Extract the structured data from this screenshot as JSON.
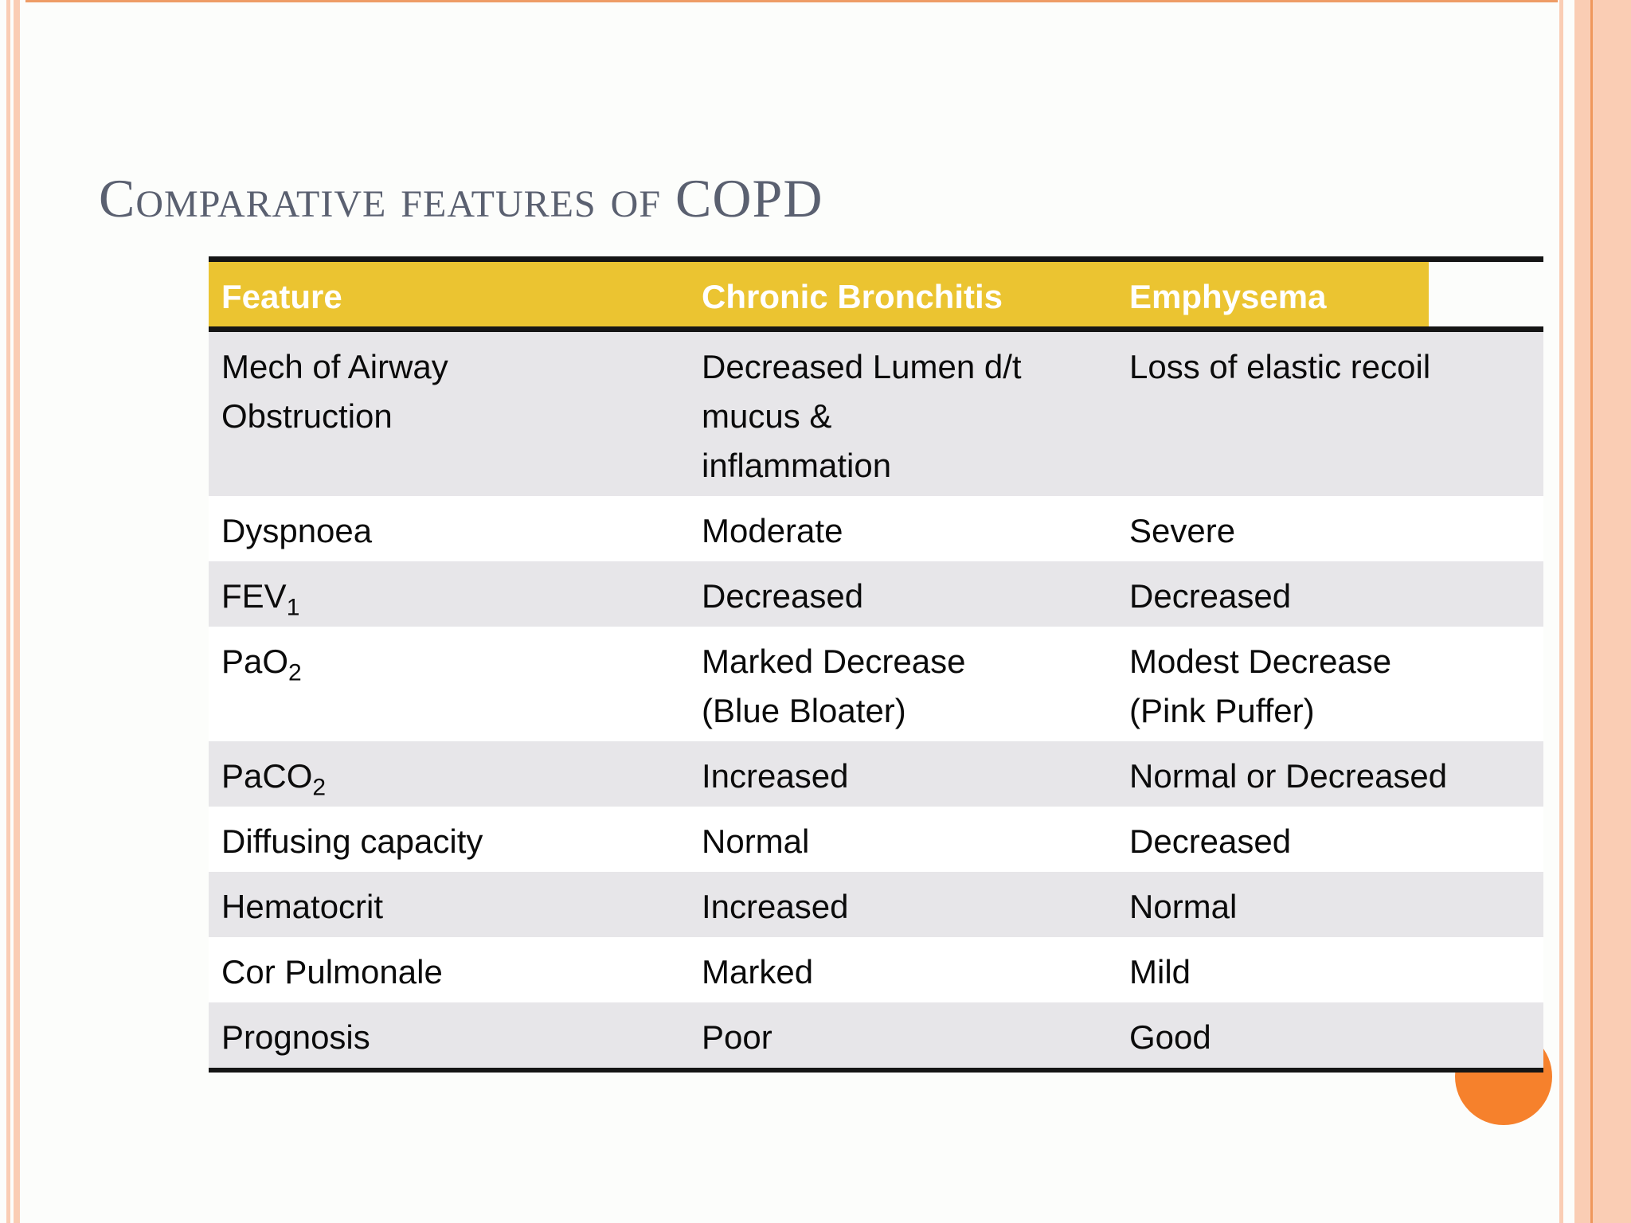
{
  "colors": {
    "page_bg": "#FCFDFB",
    "stripe": "#FACDB4",
    "stripe_dark": "#EF975B",
    "top_line": "#EE9C66",
    "circle": "#F6812C",
    "header_bg": "#EBC431",
    "header_text": "#FFFFFF",
    "row_alt": "#E7E6E9",
    "title_color": "#5A6070",
    "line_black": "#151515"
  },
  "title": {
    "text": "Comparative features of COPD"
  },
  "table": {
    "header": {
      "columns": [
        "Feature",
        "Chronic Bronchitis",
        "Emphysema"
      ]
    },
    "rows": [
      {
        "feature": "Mech of Airway\nObstruction",
        "chronic_bronchitis": "Decreased Lumen d/t\nmucus &\ninflammation",
        "emphysema": "Loss of elastic recoil",
        "shaded": true
      },
      {
        "feature": "Dyspnoea",
        "chronic_bronchitis": "Moderate",
        "emphysema": "Severe",
        "shaded": false
      },
      {
        "feature": "FEV",
        "feature_sub": "1",
        "chronic_bronchitis": "Decreased",
        "emphysema": "Decreased",
        "shaded": true
      },
      {
        "feature": "PaO",
        "feature_sub": "2",
        "chronic_bronchitis": "Marked Decrease\n(Blue Bloater)",
        "emphysema": "Modest Decrease\n(Pink Puffer)",
        "shaded": false
      },
      {
        "feature": "PaCO",
        "feature_sub": "2",
        "chronic_bronchitis": "Increased",
        "emphysema": "Normal or Decreased",
        "shaded": true
      },
      {
        "feature": "Diffusing capacity",
        "chronic_bronchitis": "Normal",
        "emphysema": "Decreased",
        "shaded": false
      },
      {
        "feature": "Hematocrit",
        "chronic_bronchitis": "Increased",
        "emphysema": "Normal",
        "shaded": true
      },
      {
        "feature": "Cor Pulmonale",
        "chronic_bronchitis": "Marked",
        "emphysema": "Mild",
        "shaded": false
      },
      {
        "feature": "Prognosis",
        "chronic_bronchitis": "Poor",
        "emphysema": "Good",
        "shaded": true
      }
    ]
  }
}
